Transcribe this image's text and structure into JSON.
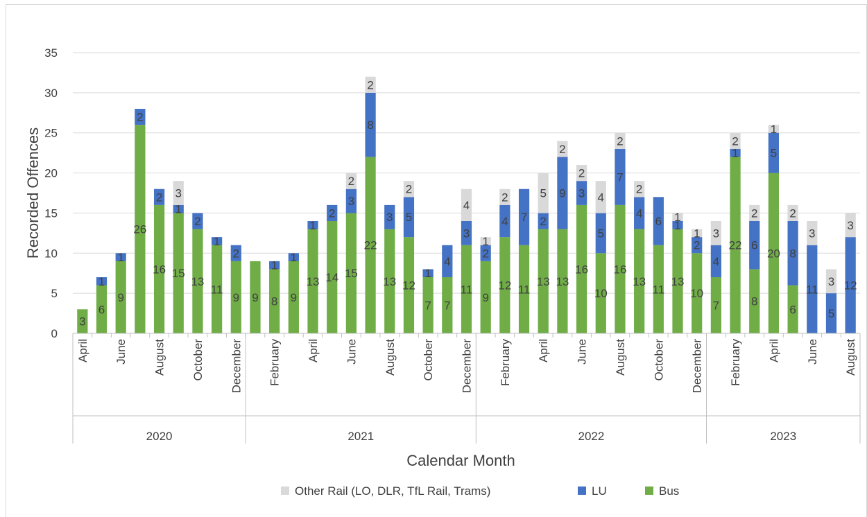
{
  "heading_fragment": "",
  "chart_data": {
    "type": "bar",
    "stacked": true,
    "title": "",
    "xlabel": "Calendar Month",
    "ylabel": "Recorded Offences",
    "ylim": [
      0,
      35
    ],
    "yticks": [
      0,
      5,
      10,
      15,
      20,
      25,
      30,
      35
    ],
    "grid": true,
    "legend_position": "bottom",
    "month_names": [
      "",
      "",
      "",
      "",
      "",
      "",
      "",
      "",
      "",
      "",
      "",
      "",
      "",
      "",
      "",
      "",
      "",
      "",
      "",
      "",
      "",
      "",
      "",
      "",
      "",
      "",
      "",
      "",
      "",
      "",
      "",
      "",
      "",
      "",
      "",
      "",
      "",
      "",
      "",
      "",
      "",
      ""
    ],
    "month_labels": [
      "April",
      "June",
      "August",
      "October",
      "December",
      "February",
      "April",
      "June",
      "August",
      "October",
      "December",
      "February",
      "April",
      "June",
      "August",
      "October",
      "December",
      "February",
      "April",
      "June",
      "August"
    ],
    "month_label_index": [
      0,
      2,
      4,
      6,
      8,
      10,
      12,
      14,
      16,
      18,
      20,
      22,
      24,
      26,
      28,
      30,
      32,
      34,
      36,
      38,
      40
    ],
    "year_groups": [
      {
        "year": "2020",
        "start": 0,
        "end": 8
      },
      {
        "year": "2021",
        "start": 9,
        "end": 20
      },
      {
        "year": "2022",
        "start": 21,
        "end": 32
      },
      {
        "year": "2023",
        "start": 33,
        "end": 40
      }
    ],
    "series": [
      {
        "name": "Bus",
        "color": "#70ad47",
        "values": [
          3,
          6,
          9,
          26,
          16,
          15,
          13,
          11,
          9,
          9,
          8,
          9,
          13,
          14,
          15,
          22,
          13,
          12,
          7,
          7,
          11,
          9,
          12,
          11,
          13,
          13,
          16,
          10,
          16,
          13,
          11,
          13,
          10,
          7,
          22,
          8,
          20,
          6,
          0,
          0,
          0
        ]
      },
      {
        "name": "LU",
        "color": "#4472c4",
        "values": [
          0,
          1,
          1,
          2,
          2,
          1,
          2,
          1,
          2,
          0,
          1,
          1,
          1,
          2,
          3,
          8,
          3,
          5,
          1,
          4,
          3,
          2,
          4,
          7,
          2,
          9,
          3,
          5,
          7,
          4,
          6,
          1,
          2,
          4,
          1,
          6,
          5,
          8,
          11,
          5,
          12
        ]
      },
      {
        "name": "Other Rail (LO, DLR, TfL Rail, Trams)",
        "color": "#d9d9d9",
        "values": [
          0,
          0,
          0,
          0,
          0,
          3,
          0,
          0,
          0,
          0,
          0,
          0,
          0,
          0,
          2,
          2,
          0,
          2,
          0,
          0,
          4,
          1,
          2,
          0,
          5,
          2,
          2,
          4,
          2,
          2,
          0,
          1,
          1,
          3,
          2,
          2,
          1,
          2,
          3,
          3,
          3
        ]
      }
    ],
    "data_labels": {
      "Bus": [
        "3",
        "6",
        "9",
        "26",
        "16",
        "15",
        "13",
        "11",
        "9",
        "9",
        "8",
        "9",
        "13",
        "14",
        "15",
        "22",
        "13",
        "12",
        "7",
        "7",
        "11",
        "9",
        "12",
        "11",
        "13",
        "13",
        "16",
        "10",
        "16",
        "13",
        "11",
        "13",
        "10",
        "7",
        "22",
        "8",
        "20",
        "6",
        "",
        "",
        ""
      ],
      "LU": [
        "",
        "1",
        "1",
        "2",
        "2",
        "1",
        "2",
        "1",
        "2",
        "",
        "1",
        "1",
        "1",
        "2",
        "3",
        "8",
        "3",
        "5",
        "1",
        "4",
        "3",
        "2",
        "4",
        "7",
        "2",
        "9",
        "3",
        "5",
        "7",
        "4",
        "6",
        "1",
        "2",
        "4",
        "1",
        "6",
        "5",
        "8",
        "11",
        "5",
        "12"
      ],
      "Other Rail (LO, DLR, TfL Rail, Trams)": [
        "",
        "",
        "",
        "",
        "",
        "3",
        "",
        "",
        "",
        "",
        "",
        "",
        "",
        "",
        "2",
        "2",
        "",
        "2",
        "",
        "",
        "4",
        "1",
        "2",
        "",
        "5",
        "2",
        "2",
        "4",
        "2",
        "2",
        "",
        "1",
        "1",
        "3",
        "2",
        "2",
        "1",
        "2",
        "3",
        "3",
        "3"
      ]
    },
    "legend": [
      "Other Rail (LO, DLR, TfL Rail, Trams)",
      "LU",
      "Bus"
    ]
  }
}
